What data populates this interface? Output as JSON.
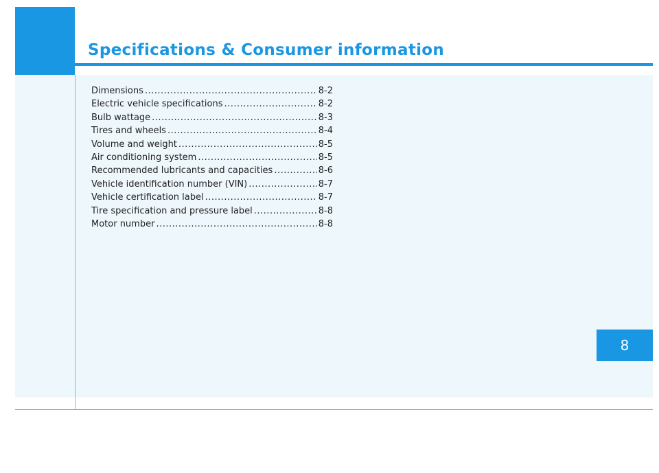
{
  "header": {
    "title": "Specifications & Consumer information"
  },
  "toc": {
    "entries": [
      {
        "label": "Dimensions",
        "page": "8-2"
      },
      {
        "label": "Electric vehicle specifications",
        "page": "8-2"
      },
      {
        "label": "Bulb wattage",
        "page": "8-3"
      },
      {
        "label": "Tires and wheels",
        "page": "8-4"
      },
      {
        "label": "Volume and weight",
        "page": "8-5"
      },
      {
        "label": "Air conditioning system",
        "page": "8-5"
      },
      {
        "label": "Recommended lubricants and capacities",
        "page": "8-6"
      },
      {
        "label": "Vehicle identification number (VIN)",
        "page": "8-7"
      },
      {
        "label": "Vehicle certification label",
        "page": "8-7"
      },
      {
        "label": "Tire specification and pressure label",
        "page": "8-8"
      },
      {
        "label": "Motor number",
        "page": "8-8"
      }
    ]
  },
  "chapter_tab": {
    "number": "8"
  },
  "colors": {
    "accent": "#1a97e3",
    "panel": "#eef7fc",
    "rule": "#6cc0ee",
    "text": "#222222"
  }
}
